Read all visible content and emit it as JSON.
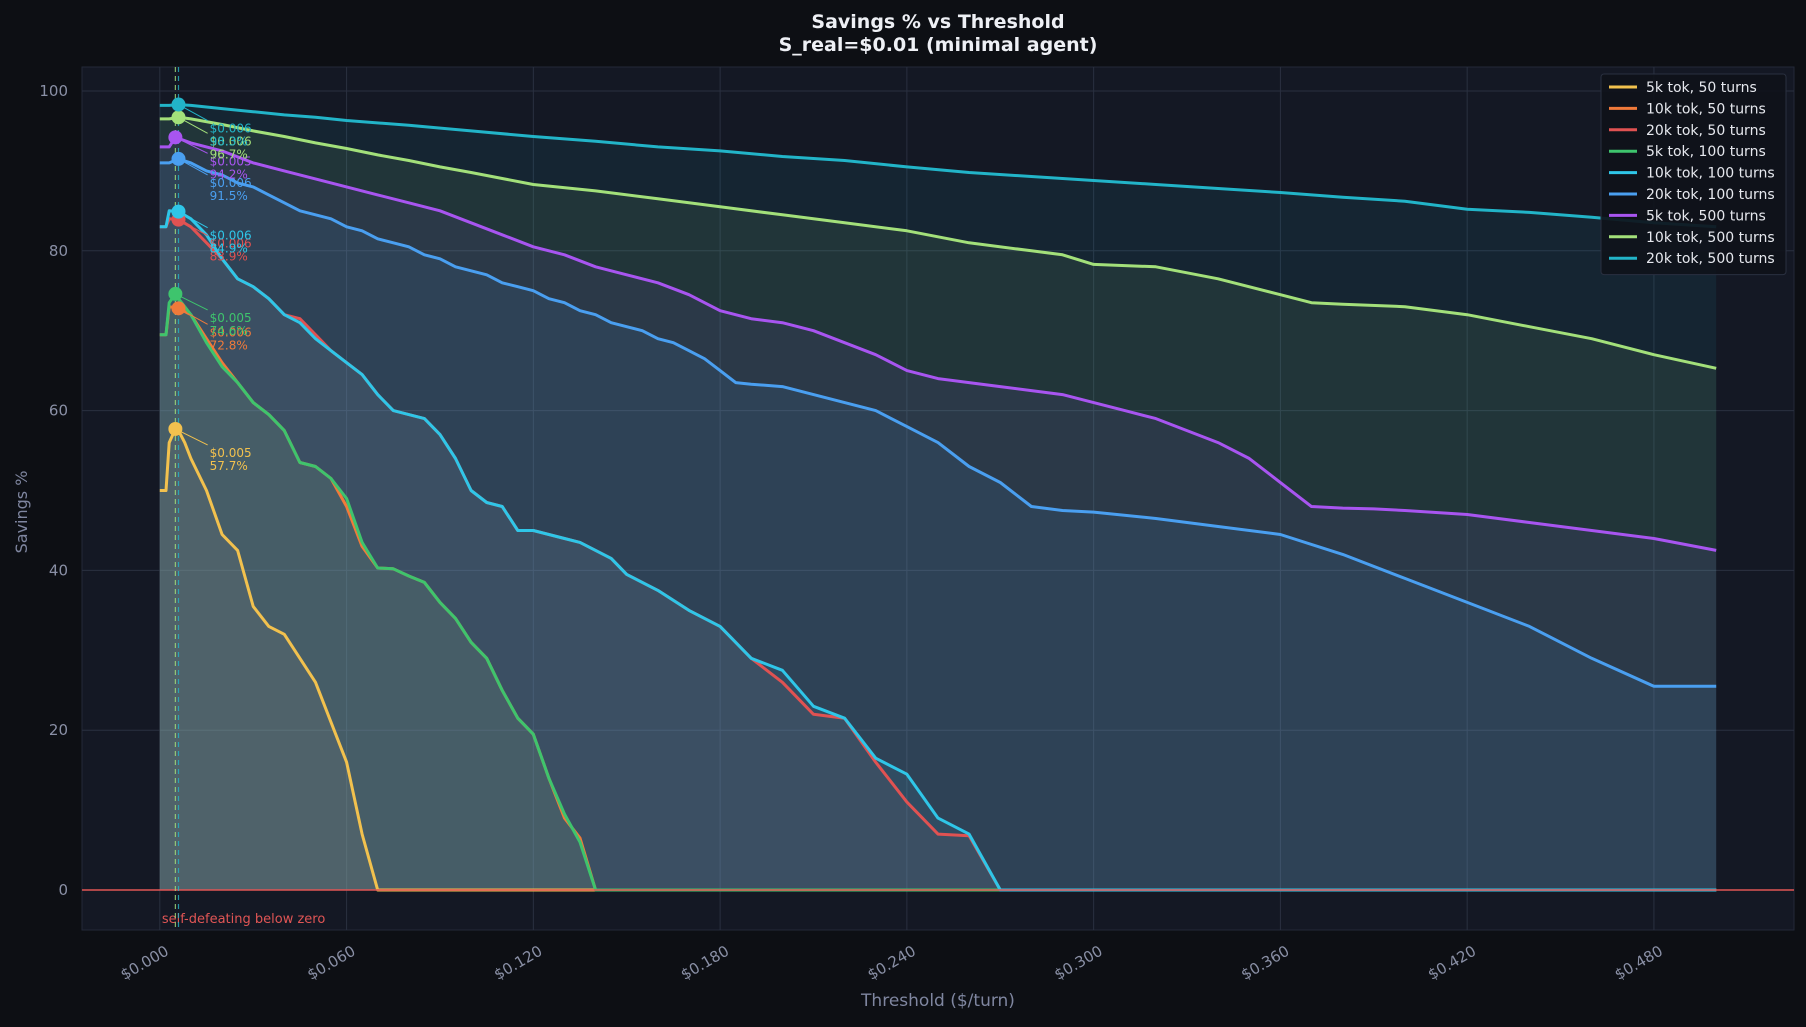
{
  "chart_data": {
    "type": "line",
    "title": "Savings % vs Threshold",
    "subtitle": "S_real=$0.01  (minimal agent)",
    "xlabel": "Threshold ($/turn)",
    "ylabel": "Savings %",
    "xlim": [
      -0.025,
      0.525
    ],
    "ylim": [
      -5,
      103
    ],
    "x_ticks": [
      0.0,
      0.06,
      0.12,
      0.18,
      0.24,
      0.3,
      0.36,
      0.42,
      0.48
    ],
    "x_tick_labels": [
      "$0.000",
      "$0.060",
      "$0.120",
      "$0.180",
      "$0.240",
      "$0.300",
      "$0.360",
      "$0.420",
      "$0.480"
    ],
    "y_ticks": [
      0,
      20,
      40,
      60,
      80,
      100
    ],
    "y_tick_labels": [
      "0",
      "20",
      "40",
      "60",
      "80",
      "100"
    ],
    "grid": true,
    "legend_position": "top-right",
    "zero_line_label": "self-defeating below zero",
    "vlines": [
      0.005,
      0.006
    ],
    "colors": {
      "background": "#0d0f14",
      "plot_background": "#141824",
      "grid": "#2a3040",
      "zero_line": "#e05555",
      "text": "#e6e8ee",
      "tick_text": "#8a90a6"
    },
    "series": [
      {
        "name": "5k tok, 50 turns",
        "color": "#f2c14e",
        "x": [
          0,
          0.002,
          0.003,
          0.005,
          0.006,
          0.008,
          0.01,
          0.015,
          0.02,
          0.025,
          0.03,
          0.035,
          0.04,
          0.045,
          0.05,
          0.055,
          0.06,
          0.065,
          0.07,
          0.075,
          0.08,
          0.085,
          0.09,
          0.095,
          0.1,
          0.15,
          0.2,
          0.3,
          0.4,
          0.5
        ],
        "y": [
          50,
          50,
          56,
          57.7,
          57.5,
          56,
          54,
          50,
          44.5,
          42.5,
          35.5,
          33,
          32,
          29,
          26,
          21,
          16,
          7,
          0,
          0,
          0,
          0,
          0,
          0,
          0,
          0,
          0,
          0,
          0,
          0
        ],
        "highlight": {
          "x": 0.005,
          "y": 57.7,
          "label_x": "$0.005",
          "label_y": "57.7%"
        }
      },
      {
        "name": "10k tok, 50 turns",
        "color": "#f07a3a",
        "x": [
          0,
          0.002,
          0.003,
          0.006,
          0.01,
          0.015,
          0.02,
          0.025,
          0.03,
          0.035,
          0.04,
          0.045,
          0.05,
          0.055,
          0.06,
          0.065,
          0.07,
          0.075,
          0.08,
          0.085,
          0.09,
          0.095,
          0.1,
          0.105,
          0.11,
          0.115,
          0.12,
          0.125,
          0.13,
          0.135,
          0.14,
          0.145,
          0.15,
          0.2,
          0.3,
          0.4,
          0.5
        ],
        "y": [
          69.5,
          69.5,
          73,
          72.8,
          72,
          69,
          66,
          63.5,
          61,
          59.5,
          57.5,
          53.5,
          53,
          51.5,
          48,
          43,
          40.3,
          40.2,
          39.3,
          38.5,
          36,
          34,
          31,
          29,
          25,
          21.5,
          19.5,
          14,
          9,
          6.5,
          0,
          0,
          0,
          0,
          0,
          0,
          0
        ],
        "highlight": {
          "x": 0.006,
          "y": 72.8,
          "label_x": "$0.006",
          "label_y": "72.8%"
        }
      },
      {
        "name": "20k tok, 50 turns",
        "color": "#e05252",
        "x": [
          0,
          0.002,
          0.003,
          0.006,
          0.01,
          0.015,
          0.02,
          0.025,
          0.03,
          0.035,
          0.04,
          0.045,
          0.05,
          0.055,
          0.06,
          0.065,
          0.07,
          0.075,
          0.08,
          0.085,
          0.09,
          0.095,
          0.1,
          0.105,
          0.11,
          0.115,
          0.12,
          0.125,
          0.13,
          0.135,
          0.14,
          0.145,
          0.15,
          0.16,
          0.17,
          0.18,
          0.19,
          0.2,
          0.21,
          0.22,
          0.23,
          0.24,
          0.25,
          0.26,
          0.27,
          0.28,
          0.285,
          0.29,
          0.3,
          0.4,
          0.5
        ],
        "y": [
          83,
          83,
          84,
          83.9,
          83,
          81,
          79,
          76.5,
          75.5,
          74,
          72,
          71.5,
          69.5,
          67.5,
          66,
          64.5,
          62,
          60,
          59.5,
          59,
          57,
          54,
          50,
          48.5,
          48,
          45,
          45,
          44.5,
          44,
          43.5,
          42.5,
          41.5,
          39.5,
          37.5,
          35,
          33,
          29,
          26,
          22,
          21.5,
          16,
          11,
          7,
          6.8,
          0,
          0,
          0,
          0,
          0,
          0,
          0
        ],
        "highlight": {
          "x": 0.006,
          "y": 83.9,
          "label_x": "$0.006",
          "label_y": "83.9%"
        }
      },
      {
        "name": "5k tok, 100 turns",
        "color": "#3ec46d",
        "x": [
          0,
          0.002,
          0.003,
          0.005,
          0.006,
          0.01,
          0.015,
          0.02,
          0.025,
          0.03,
          0.035,
          0.04,
          0.045,
          0.05,
          0.055,
          0.06,
          0.065,
          0.07,
          0.075,
          0.08,
          0.085,
          0.09,
          0.095,
          0.1,
          0.105,
          0.11,
          0.115,
          0.12,
          0.125,
          0.13,
          0.135,
          0.14,
          0.145,
          0.15,
          0.2,
          0.3,
          0.4,
          0.5
        ],
        "y": [
          69.5,
          69.5,
          73.5,
          74.6,
          74,
          72,
          68.5,
          65.5,
          63.5,
          61,
          59.5,
          57.5,
          53.5,
          53,
          51.5,
          49,
          43.5,
          40.3,
          40.2,
          39.3,
          38.5,
          36,
          34,
          31,
          29,
          25,
          21.5,
          19.5,
          14,
          9.5,
          6,
          0,
          0,
          0,
          0,
          0,
          0,
          0
        ],
        "highlight": {
          "x": 0.005,
          "y": 74.6,
          "label_x": "$0.005",
          "label_y": "74.6%"
        }
      },
      {
        "name": "10k tok, 100 turns",
        "color": "#2fc6e8",
        "x": [
          0,
          0.002,
          0.003,
          0.006,
          0.01,
          0.015,
          0.02,
          0.025,
          0.03,
          0.035,
          0.04,
          0.045,
          0.05,
          0.055,
          0.06,
          0.065,
          0.07,
          0.075,
          0.08,
          0.085,
          0.09,
          0.095,
          0.1,
          0.105,
          0.11,
          0.115,
          0.12,
          0.125,
          0.13,
          0.135,
          0.14,
          0.145,
          0.15,
          0.16,
          0.17,
          0.18,
          0.19,
          0.2,
          0.21,
          0.22,
          0.23,
          0.24,
          0.25,
          0.26,
          0.27,
          0.28,
          0.285,
          0.29,
          0.3,
          0.4,
          0.5
        ],
        "y": [
          83,
          83,
          85,
          84.9,
          84,
          82,
          79,
          76.5,
          75.5,
          74,
          72,
          71,
          69,
          67.5,
          66,
          64.5,
          62,
          60,
          59.5,
          59,
          57,
          54,
          50,
          48.5,
          48,
          45,
          45,
          44.5,
          44,
          43.5,
          42.5,
          41.5,
          39.5,
          37.5,
          35,
          33,
          29,
          27.5,
          23,
          21.5,
          16.5,
          14.5,
          9,
          7,
          0,
          0,
          0,
          0,
          0,
          0,
          0
        ],
        "highlight": {
          "x": 0.006,
          "y": 84.9,
          "label_x": "$0.006",
          "label_y": "84.9%"
        }
      },
      {
        "name": "20k tok, 100 turns",
        "color": "#4a9ff0",
        "x": [
          0,
          0.003,
          0.006,
          0.01,
          0.015,
          0.02,
          0.025,
          0.03,
          0.035,
          0.04,
          0.045,
          0.05,
          0.055,
          0.06,
          0.065,
          0.07,
          0.075,
          0.08,
          0.085,
          0.09,
          0.095,
          0.1,
          0.105,
          0.11,
          0.115,
          0.12,
          0.125,
          0.13,
          0.135,
          0.14,
          0.145,
          0.15,
          0.155,
          0.16,
          0.165,
          0.17,
          0.175,
          0.18,
          0.185,
          0.19,
          0.2,
          0.21,
          0.22,
          0.23,
          0.24,
          0.25,
          0.26,
          0.27,
          0.28,
          0.29,
          0.3,
          0.32,
          0.34,
          0.36,
          0.38,
          0.4,
          0.42,
          0.44,
          0.46,
          0.48,
          0.5
        ],
        "y": [
          91,
          91,
          91.5,
          91,
          90,
          89.5,
          88.5,
          88,
          87,
          86,
          85,
          84.5,
          84,
          83,
          82.5,
          81.5,
          81,
          80.5,
          79.5,
          79,
          78,
          77.5,
          77,
          76,
          75.5,
          75,
          74,
          73.5,
          72.5,
          72,
          71,
          70.5,
          70,
          69,
          68.5,
          67.5,
          66.5,
          65,
          63.5,
          63.3,
          63,
          62,
          61,
          60,
          58,
          56,
          53,
          51,
          48,
          47.5,
          47.3,
          46.5,
          45.5,
          44.5,
          42,
          39,
          36,
          33,
          29,
          25.5,
          25.5
        ],
        "highlight": {
          "x": 0.006,
          "y": 91.5,
          "label_x": "$0.006",
          "label_y": "91.5%"
        }
      },
      {
        "name": "5k tok, 500 turns",
        "color": "#a855f0",
        "x": [
          0,
          0.003,
          0.005,
          0.01,
          0.02,
          0.03,
          0.04,
          0.05,
          0.06,
          0.07,
          0.08,
          0.09,
          0.1,
          0.11,
          0.12,
          0.13,
          0.14,
          0.15,
          0.16,
          0.17,
          0.18,
          0.19,
          0.2,
          0.21,
          0.22,
          0.23,
          0.24,
          0.25,
          0.26,
          0.27,
          0.28,
          0.29,
          0.3,
          0.31,
          0.32,
          0.33,
          0.34,
          0.35,
          0.36,
          0.37,
          0.38,
          0.39,
          0.4,
          0.42,
          0.44,
          0.46,
          0.48,
          0.5
        ],
        "y": [
          93,
          93,
          94.2,
          93.5,
          92.5,
          91,
          90,
          89,
          88,
          87,
          86,
          85,
          83.5,
          82,
          80.5,
          79.5,
          78,
          77,
          76,
          74.5,
          72.5,
          71.5,
          71,
          70,
          68.5,
          67,
          65,
          64,
          63.5,
          63,
          62.5,
          62,
          61,
          60,
          59,
          57.5,
          56,
          54,
          51,
          48,
          47.8,
          47.7,
          47.5,
          47,
          46,
          45,
          44,
          42.5
        ],
        "highlight": {
          "x": 0.005,
          "y": 94.2,
          "label_x": "$0.005",
          "label_y": "94.2%"
        }
      },
      {
        "name": "10k tok, 500 turns",
        "color": "#a3e07a",
        "x": [
          0,
          0.003,
          0.006,
          0.01,
          0.02,
          0.03,
          0.04,
          0.05,
          0.06,
          0.07,
          0.08,
          0.09,
          0.1,
          0.12,
          0.14,
          0.16,
          0.18,
          0.2,
          0.22,
          0.24,
          0.26,
          0.28,
          0.29,
          0.3,
          0.32,
          0.34,
          0.36,
          0.37,
          0.38,
          0.4,
          0.42,
          0.44,
          0.46,
          0.48,
          0.5
        ],
        "y": [
          96.5,
          96.5,
          96.7,
          96.5,
          95.8,
          95,
          94.3,
          93.5,
          92.8,
          92,
          91.3,
          90.5,
          89.8,
          88.3,
          87.5,
          86.5,
          85.5,
          84.5,
          83.5,
          82.5,
          81,
          80,
          79.5,
          78.3,
          78,
          76.5,
          74.5,
          73.5,
          73.3,
          73,
          72,
          70.5,
          69,
          67,
          65.3
        ],
        "highlight": {
          "x": 0.006,
          "y": 96.7,
          "label_x": "$0.006",
          "label_y": "96.7%"
        }
      },
      {
        "name": "20k tok, 500 turns",
        "color": "#22b4c8",
        "x": [
          0,
          0.003,
          0.006,
          0.01,
          0.02,
          0.03,
          0.04,
          0.05,
          0.06,
          0.08,
          0.1,
          0.12,
          0.14,
          0.16,
          0.18,
          0.2,
          0.22,
          0.24,
          0.26,
          0.28,
          0.3,
          0.32,
          0.34,
          0.36,
          0.38,
          0.4,
          0.42,
          0.44,
          0.46,
          0.48,
          0.5
        ],
        "y": [
          98.2,
          98.2,
          98.3,
          98.2,
          97.8,
          97.4,
          97,
          96.7,
          96.3,
          95.7,
          95,
          94.3,
          93.7,
          93,
          92.5,
          91.8,
          91.3,
          90.5,
          89.8,
          89.3,
          88.8,
          88.3,
          87.8,
          87.3,
          86.7,
          86.2,
          85.2,
          84.8,
          84.2,
          83.5,
          83
        ],
        "highlight": {
          "x": 0.006,
          "y": 98.3,
          "label_x": "$0.006",
          "label_y": "98.3%"
        }
      }
    ]
  }
}
